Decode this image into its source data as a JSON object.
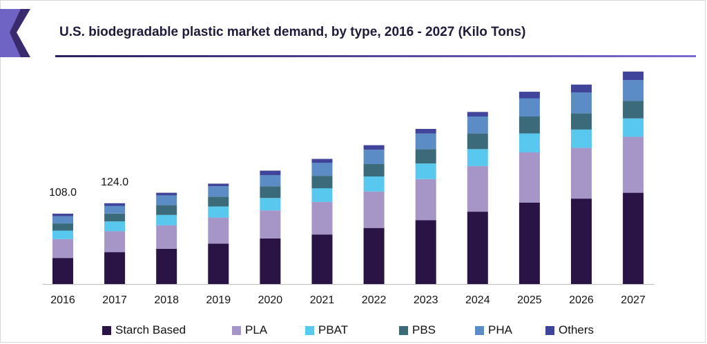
{
  "title": "U.S. biodegradable plastic market demand, by type, 2016 - 2027 (Kilo Tons)",
  "colors": {
    "accent_dark": "#3a2a6e",
    "accent_light": "#6f63c4"
  },
  "chart_data": {
    "type": "bar",
    "stacked": true,
    "title": "U.S. biodegradable plastic market demand, by type, 2016 - 2027 (Kilo Tons)",
    "xlabel": "",
    "ylabel": "",
    "grid": false,
    "legend_position": "bottom",
    "ylim": [
      0,
      330
    ],
    "categories": [
      "2016",
      "2017",
      "2018",
      "2019",
      "2020",
      "2021",
      "2022",
      "2023",
      "2024",
      "2025",
      "2026",
      "2027"
    ],
    "series": [
      {
        "name": "Starch Based",
        "color": "#2a1446",
        "values": [
          40,
          49,
          54,
          62,
          70,
          76,
          86,
          98,
          111,
          125,
          131,
          140
        ]
      },
      {
        "name": "PLA",
        "color": "#a696c8",
        "values": [
          29,
          32,
          36,
          40,
          43,
          50,
          56,
          63,
          70,
          77,
          78,
          86
        ]
      },
      {
        "name": "PBAT",
        "color": "#59c8ee",
        "values": [
          13,
          15,
          16,
          17,
          19,
          21,
          23,
          24,
          26,
          29,
          28,
          28
        ]
      },
      {
        "name": "PBS",
        "color": "#3b6b7b",
        "values": [
          11,
          12,
          15,
          15,
          18,
          19,
          19,
          22,
          24,
          26,
          25,
          27
        ]
      },
      {
        "name": "PHA",
        "color": "#5b8cc5",
        "values": [
          11,
          12,
          15,
          16,
          17,
          20,
          22,
          24,
          26,
          28,
          32,
          32
        ]
      },
      {
        "name": "Others",
        "color": "#40449a",
        "values": [
          4,
          4,
          4,
          4,
          7,
          6,
          7,
          7,
          7,
          10,
          12,
          13
        ]
      }
    ],
    "data_labels": [
      {
        "category": "2016",
        "text": "108.0"
      },
      {
        "category": "2017",
        "text": "124.0"
      }
    ]
  }
}
